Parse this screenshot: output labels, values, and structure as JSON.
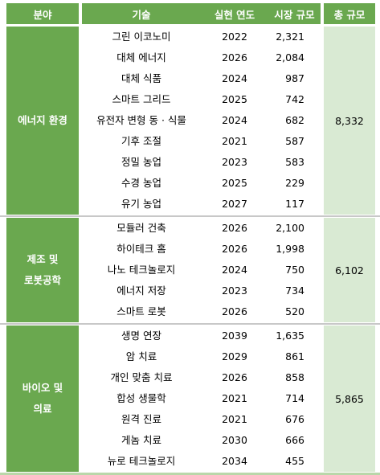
{
  "headers": {
    "field": "분야",
    "tech": "기술",
    "year": "실현 연도",
    "market": "시장 규모",
    "total": "총 규모"
  },
  "groups": [
    {
      "name_lines": [
        "에너지 환경"
      ],
      "total": "8,332",
      "rows": [
        {
          "tech": "그린 이코노미",
          "year": "2022",
          "size": "2,321"
        },
        {
          "tech": "대체 에너지",
          "year": "2026",
          "size": "2,084"
        },
        {
          "tech": "대체 식품",
          "year": "2024",
          "size": "987"
        },
        {
          "tech": "스마트 그리드",
          "year": "2025",
          "size": "742"
        },
        {
          "tech": "유전자 변형 동 · 식물",
          "year": "2024",
          "size": "682"
        },
        {
          "tech": "기후 조절",
          "year": "2021",
          "size": "587"
        },
        {
          "tech": "정밀 농업",
          "year": "2023",
          "size": "583"
        },
        {
          "tech": "수경 농업",
          "year": "2025",
          "size": "229"
        },
        {
          "tech": "유기 농업",
          "year": "2027",
          "size": "117"
        }
      ]
    },
    {
      "name_lines": [
        "제조 및",
        "로봇공학"
      ],
      "total": "6,102",
      "rows": [
        {
          "tech": "모듈러 건축",
          "year": "2026",
          "size": "2,100"
        },
        {
          "tech": "하이테크 홈",
          "year": "2026",
          "size": "1,998"
        },
        {
          "tech": "나노 테크놀로지",
          "year": "2024",
          "size": "750"
        },
        {
          "tech": "에너지 저장",
          "year": "2023",
          "size": "734"
        },
        {
          "tech": "스마트 로봇",
          "year": "2026",
          "size": "520"
        }
      ]
    },
    {
      "name_lines": [
        "바이오 및",
        "의료"
      ],
      "total": "5,865",
      "rows": [
        {
          "tech": "생명 연장",
          "year": "2039",
          "size": "1,635"
        },
        {
          "tech": "암 치료",
          "year": "2029",
          "size": "861"
        },
        {
          "tech": "개인 맞춤 치료",
          "year": "2026",
          "size": "858"
        },
        {
          "tech": "합성 생물학",
          "year": "2021",
          "size": "714"
        },
        {
          "tech": "원격 진료",
          "year": "2021",
          "size": "676"
        },
        {
          "tech": "게놈 치료",
          "year": "2030",
          "size": "666"
        },
        {
          "tech": "뉴로 테크놀로지",
          "year": "2034",
          "size": "455"
        }
      ]
    }
  ],
  "colors": {
    "header_bg": "#6aa84f",
    "category_bg": "#6aa84f",
    "total_bg": "#d9ead3",
    "separator": "#c8c8c8"
  }
}
